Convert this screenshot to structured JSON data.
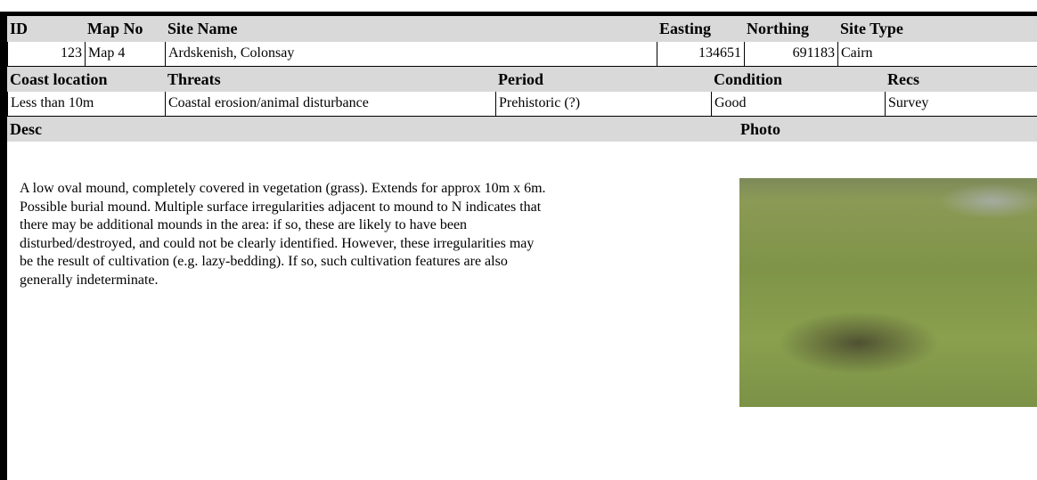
{
  "record": {
    "row1": {
      "labels": [
        "ID",
        "Map No",
        "Site Name",
        "Easting",
        "Northing",
        "Site Type"
      ],
      "values": [
        123,
        "Map 4",
        "Ardskenish, Colonsay",
        134651,
        691183,
        "Cairn"
      ]
    },
    "row2": {
      "labels": [
        "Coast location",
        "Threats",
        "Period",
        "Condition",
        "Recs"
      ],
      "values": [
        "Less than 10m",
        "Coastal erosion/animal disturbance",
        "Prehistoric (?)",
        "Good",
        "Survey"
      ]
    },
    "desc": {
      "label": "Desc",
      "lines": [
        "A low oval mound, completely covered in vegetation (grass). Extends for approx 10m x 6m.",
        "Possible burial mound. Multiple surface irregularities adjacent to mound to N indicates that",
        "there may be additional mounds in the area: if so, these are likely to have been",
        "disturbed/destroyed, and could not be clearly identified. However, these irregularities may",
        "be the result of cultivation (e.g. lazy-bedding). If so, such cultivation features are also",
        "generally indeterminate."
      ]
    },
    "photo": {
      "label": "Photo"
    }
  }
}
